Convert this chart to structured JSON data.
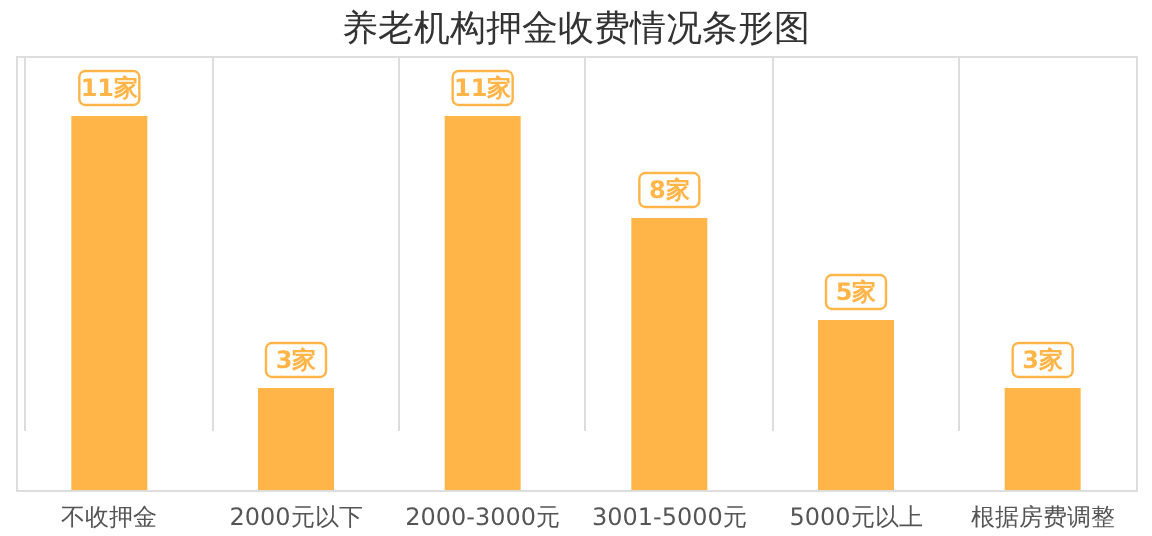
{
  "chart_data": {
    "type": "bar",
    "title": "养老机构押金收费情况条形图",
    "categories": [
      "不收押金",
      "2000元以下",
      "2000-3000元",
      "3001-5000元",
      "5000元以上",
      "根据房费调整"
    ],
    "values": [
      11,
      3,
      11,
      8,
      5,
      3
    ],
    "value_labels": [
      "11家",
      "3家",
      "11家",
      "8家",
      "5家",
      "3家"
    ],
    "color": "#ffb547",
    "grid": "x"
  }
}
